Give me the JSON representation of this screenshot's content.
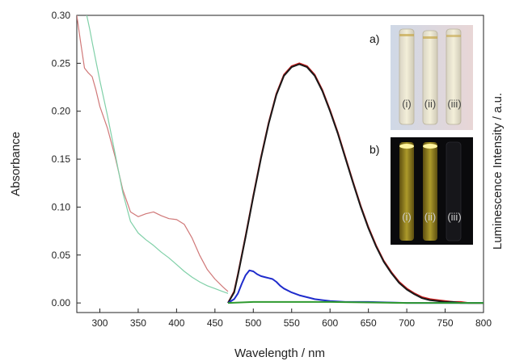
{
  "chart_data": {
    "type": "line",
    "xlabel": "Wavelength / nm",
    "ylabel": "Absorbance",
    "y2label": "Luminescence Intensity / a.u.",
    "xlim": [
      270,
      800
    ],
    "ylim": [
      -0.01,
      0.3
    ],
    "x_ticks": [
      300,
      350,
      400,
      450,
      500,
      550,
      600,
      650,
      700,
      750,
      800
    ],
    "y_ticks": [
      "0.00",
      "0.05",
      "0.10",
      "0.15",
      "0.20",
      "0.25",
      "0.30"
    ],
    "grid": false,
    "series": [
      {
        "kind": "absorbance",
        "color": "#d07878",
        "x": [
          270,
          275,
          280,
          285,
          290,
          295,
          300,
          310,
          320,
          330,
          340,
          350,
          360,
          370,
          380,
          390,
          400,
          410,
          420,
          430,
          440,
          450,
          460,
          467
        ],
        "y": [
          0.3,
          0.272,
          0.245,
          0.24,
          0.236,
          0.222,
          0.205,
          0.182,
          0.152,
          0.118,
          0.095,
          0.09,
          0.093,
          0.095,
          0.091,
          0.088,
          0.087,
          0.082,
          0.068,
          0.05,
          0.035,
          0.025,
          0.017,
          0.012
        ]
      },
      {
        "kind": "absorbance",
        "color": "#80d0a8",
        "x": [
          283,
          287,
          290,
          295,
          300,
          310,
          320,
          330,
          340,
          350,
          360,
          370,
          380,
          390,
          400,
          410,
          420,
          430,
          440,
          450,
          460,
          467
        ],
        "y": [
          0.3,
          0.285,
          0.272,
          0.252,
          0.232,
          0.195,
          0.155,
          0.115,
          0.085,
          0.073,
          0.066,
          0.06,
          0.053,
          0.047,
          0.04,
          0.033,
          0.027,
          0.022,
          0.018,
          0.015,
          0.012,
          0.01
        ]
      },
      {
        "kind": "emission",
        "color": "#c81818",
        "x": [
          467,
          475,
          480,
          490,
          500,
          510,
          520,
          530,
          540,
          550,
          560,
          570,
          580,
          590,
          600,
          610,
          620,
          630,
          640,
          650,
          660,
          670,
          680,
          690,
          700,
          710,
          720,
          730,
          740,
          750,
          760,
          770,
          780,
          800
        ],
        "y": [
          0.0,
          0.012,
          0.03,
          0.07,
          0.112,
          0.152,
          0.188,
          0.218,
          0.238,
          0.247,
          0.25,
          0.247,
          0.238,
          0.222,
          0.201,
          0.178,
          0.152,
          0.126,
          0.101,
          0.079,
          0.06,
          0.044,
          0.032,
          0.022,
          0.015,
          0.01,
          0.006,
          0.004,
          0.003,
          0.002,
          0.001,
          0.001,
          0.0,
          0.0
        ]
      },
      {
        "kind": "emission",
        "color": "#1a1a1a",
        "x": [
          467,
          475,
          480,
          490,
          500,
          510,
          520,
          530,
          540,
          550,
          560,
          570,
          580,
          590,
          600,
          610,
          620,
          630,
          640,
          650,
          660,
          670,
          680,
          690,
          700,
          710,
          720,
          730,
          740,
          750,
          760,
          770,
          780,
          800
        ],
        "y": [
          0.0,
          0.011,
          0.029,
          0.069,
          0.111,
          0.151,
          0.187,
          0.217,
          0.237,
          0.246,
          0.249,
          0.246,
          0.237,
          0.221,
          0.2,
          0.177,
          0.151,
          0.125,
          0.1,
          0.078,
          0.059,
          0.043,
          0.031,
          0.021,
          0.014,
          0.009,
          0.005,
          0.003,
          0.002,
          0.001,
          0.001,
          0.0,
          0.0,
          0.0
        ]
      },
      {
        "kind": "emission",
        "color": "#1f2ccc",
        "x": [
          467,
          475,
          480,
          485,
          490,
          495,
          500,
          505,
          510,
          515,
          520,
          525,
          530,
          535,
          540,
          550,
          560,
          570,
          580,
          590,
          600,
          620,
          650,
          700,
          800
        ],
        "y": [
          0.0,
          0.004,
          0.01,
          0.02,
          0.029,
          0.034,
          0.033,
          0.03,
          0.028,
          0.027,
          0.026,
          0.025,
          0.022,
          0.018,
          0.015,
          0.011,
          0.008,
          0.006,
          0.004,
          0.003,
          0.002,
          0.001,
          0.001,
          0.0,
          0.0
        ]
      },
      {
        "kind": "emission",
        "color": "#2f9a2f",
        "x": [
          467,
          500,
          600,
          700,
          800
        ],
        "y": [
          0.0,
          0.001,
          0.001,
          0.0,
          0.0
        ]
      }
    ],
    "insets": [
      {
        "tag": "a)",
        "vials": [
          "(i)",
          "(ii)",
          "(iii)"
        ]
      },
      {
        "tag": "b)",
        "vials": [
          "(i)",
          "(ii)",
          "(iii)"
        ]
      }
    ]
  }
}
